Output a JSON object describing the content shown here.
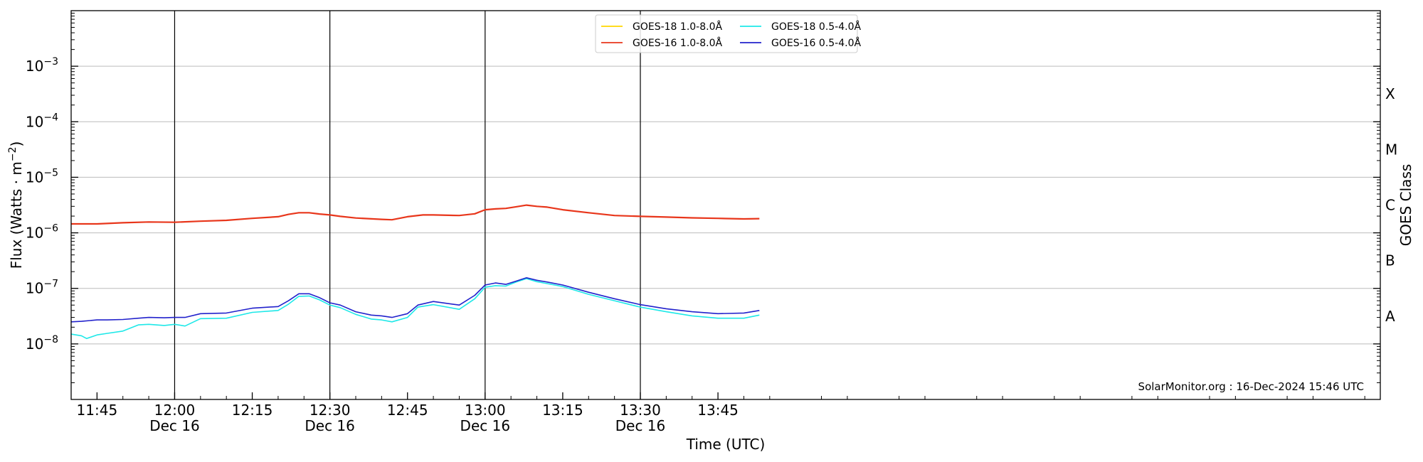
{
  "chart_data": {
    "type": "line",
    "ylabel": "Flux (Watts · m⁻²)",
    "ylabel_main": "Flux (Watts · m",
    "ylabel_sup": "−2",
    "ylabel_close": ")",
    "xlabel": "Time (UTC)",
    "right_ylabel": "GOES Class",
    "credit": "SolarMonitor.org : 16-Dec-2024 15:46 UTC",
    "x_unit": "minutes of the day (UTC) on Dec 16, 2024",
    "xlim": [
      700,
      953
    ],
    "ylim_exponent": [
      -9,
      -2
    ],
    "y_scale": "log",
    "grid": "horizontal at decades",
    "legend_position": "top-center",
    "x_tick_values": [
      705,
      720,
      735,
      750,
      765,
      780,
      795,
      810,
      825
    ],
    "x_ticks": [
      {
        "time": "11:45",
        "date": ""
      },
      {
        "time": "12:00",
        "date": "Dec 16"
      },
      {
        "time": "12:15",
        "date": ""
      },
      {
        "time": "12:30",
        "date": "Dec 16"
      },
      {
        "time": "12:45",
        "date": ""
      },
      {
        "time": "13:00",
        "date": "Dec 16"
      },
      {
        "time": "13:15",
        "date": ""
      },
      {
        "time": "13:30",
        "date": "Dec 16"
      },
      {
        "time": "13:45",
        "date": ""
      }
    ],
    "vertical_lines_at": [
      720,
      750,
      780,
      810
    ],
    "y_ticks": [
      {
        "exp": -8,
        "base": "10",
        "sup": "−8"
      },
      {
        "exp": -7,
        "base": "10",
        "sup": "−7"
      },
      {
        "exp": -6,
        "base": "10",
        "sup": "−6"
      },
      {
        "exp": -5,
        "base": "10",
        "sup": "−5"
      },
      {
        "exp": -4,
        "base": "10",
        "sup": "−4"
      },
      {
        "exp": -3,
        "base": "10",
        "sup": "−3"
      }
    ],
    "goes_classes": [
      {
        "label": "A",
        "log_flux": -7.5
      },
      {
        "label": "B",
        "log_flux": -6.5
      },
      {
        "label": "C",
        "log_flux": -5.5
      },
      {
        "label": "M",
        "log_flux": -4.5
      },
      {
        "label": "X",
        "log_flux": -3.5
      }
    ],
    "series": [
      {
        "name": "GOES-18 1.0-8.0Å",
        "color": "#ffd700",
        "x": [],
        "y": []
      },
      {
        "name": "GOES-16 1.0-8.0Å",
        "color": "#e8361b",
        "x": [
          700,
          705,
          710,
          715,
          720,
          725,
          730,
          735,
          740,
          742,
          744,
          746,
          748,
          750,
          752,
          755,
          760,
          762,
          765,
          768,
          770,
          775,
          778,
          780,
          782,
          784,
          786,
          788,
          790,
          792,
          795,
          800,
          805,
          810,
          815,
          820,
          825,
          830,
          833
        ],
        "y": [
          1.45e-06,
          1.45e-06,
          1.52e-06,
          1.57e-06,
          1.55e-06,
          1.62e-06,
          1.68e-06,
          1.82e-06,
          1.95e-06,
          2.15e-06,
          2.3e-06,
          2.3e-06,
          2.18e-06,
          2.1e-06,
          1.98e-06,
          1.85e-06,
          1.75e-06,
          1.72e-06,
          1.95e-06,
          2.1e-06,
          2.1e-06,
          2.05e-06,
          2.2e-06,
          2.6e-06,
          2.7e-06,
          2.75e-06,
          2.95e-06,
          3.15e-06,
          3e-06,
          2.9e-06,
          2.6e-06,
          2.3e-06,
          2.05e-06,
          1.98e-06,
          1.92e-06,
          1.86e-06,
          1.82e-06,
          1.78e-06,
          1.8e-06
        ]
      },
      {
        "name": "GOES-18 0.5-4.0Å",
        "color": "#1ee8e8",
        "x": [
          700,
          702,
          703,
          705,
          707,
          710,
          713,
          715,
          718,
          720,
          722,
          725,
          730,
          735,
          740,
          742,
          744,
          746,
          748,
          750,
          752,
          755,
          758,
          760,
          762,
          765,
          767,
          770,
          775,
          778,
          780,
          782,
          784,
          786,
          788,
          790,
          792,
          795,
          800,
          805,
          810,
          815,
          820,
          825,
          830,
          833
        ],
        "y": [
          1.5e-08,
          1.4e-08,
          1.25e-08,
          1.45e-08,
          1.55e-08,
          1.7e-08,
          2.2e-08,
          2.25e-08,
          2.15e-08,
          2.25e-08,
          2.1e-08,
          2.85e-08,
          2.9e-08,
          3.7e-08,
          4e-08,
          5.2e-08,
          7.2e-08,
          7.3e-08,
          6.2e-08,
          5e-08,
          4.5e-08,
          3.4e-08,
          2.8e-08,
          2.7e-08,
          2.5e-08,
          3e-08,
          4.6e-08,
          5.1e-08,
          4.2e-08,
          6.5e-08,
          1.05e-07,
          1.12e-07,
          1.1e-07,
          1.3e-07,
          1.5e-07,
          1.32e-07,
          1.22e-07,
          1.08e-07,
          7.8e-08,
          6e-08,
          4.6e-08,
          3.8e-08,
          3.2e-08,
          2.9e-08,
          2.9e-08,
          3.3e-08
        ]
      },
      {
        "name": "GOES-16 0.5-4.0Å",
        "color": "#2222cc",
        "x": [
          700,
          702,
          705,
          707,
          710,
          713,
          715,
          718,
          720,
          722,
          725,
          730,
          735,
          740,
          742,
          744,
          746,
          748,
          750,
          752,
          755,
          758,
          760,
          762,
          765,
          767,
          770,
          775,
          778,
          780,
          782,
          784,
          786,
          788,
          790,
          792,
          795,
          800,
          805,
          810,
          815,
          820,
          825,
          830,
          833
        ],
        "y": [
          2.5e-08,
          2.55e-08,
          2.7e-08,
          2.7e-08,
          2.75e-08,
          2.9e-08,
          3e-08,
          2.95e-08,
          3e-08,
          3e-08,
          3.5e-08,
          3.6e-08,
          4.4e-08,
          4.7e-08,
          6e-08,
          8e-08,
          8e-08,
          6.8e-08,
          5.5e-08,
          5e-08,
          3.8e-08,
          3.3e-08,
          3.2e-08,
          3e-08,
          3.5e-08,
          5e-08,
          5.8e-08,
          5e-08,
          7.5e-08,
          1.15e-07,
          1.25e-07,
          1.18e-07,
          1.35e-07,
          1.55e-07,
          1.4e-07,
          1.3e-07,
          1.15e-07,
          8.5e-08,
          6.5e-08,
          5.1e-08,
          4.3e-08,
          3.8e-08,
          3.5e-08,
          3.6e-08,
          4e-08
        ]
      }
    ]
  }
}
